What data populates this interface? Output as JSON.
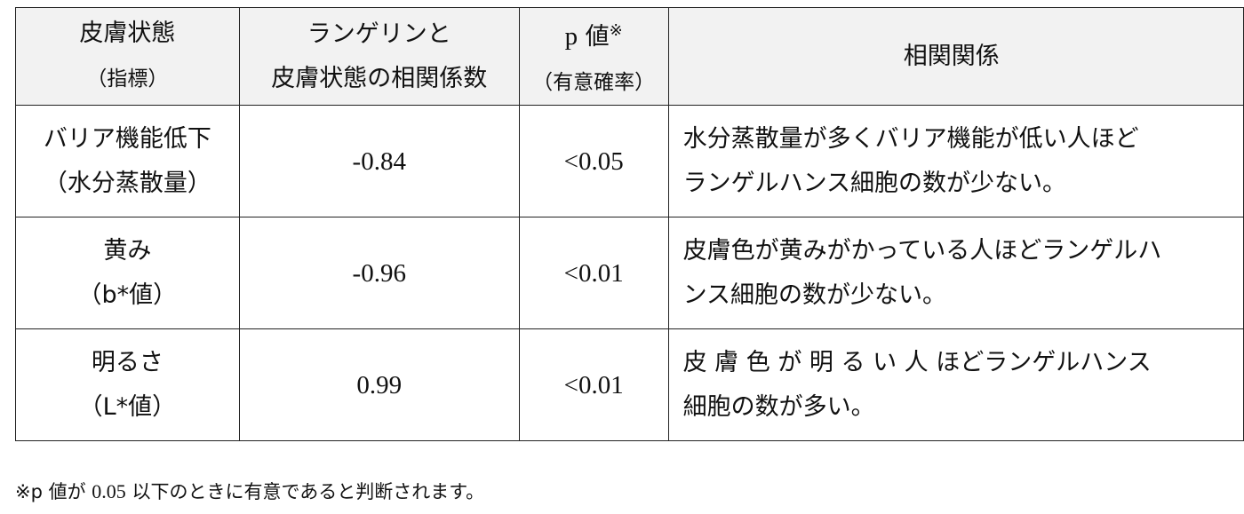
{
  "table": {
    "headers": [
      {
        "line1": "皮膚状態",
        "line2": "（指標）"
      },
      {
        "line1": "ランゲリンと",
        "line2": "皮膚状態の相関係数"
      },
      {
        "line1_p": "p",
        "line1": "値",
        "mark": "※",
        "line2": "（有意確率）"
      },
      {
        "line1": "相関関係"
      }
    ],
    "rows": [
      {
        "indicator": "バリア機能低下",
        "indicator_sub": "（水分蒸散量）",
        "coef": "-0.84",
        "p": "<0.05",
        "relation_l1": "水分蒸散量が多くバリア機能が低い人ほど",
        "relation_l2": "ランゲルハンス細胞の数が少ない。"
      },
      {
        "indicator": "黄み",
        "indicator_sub": "（b*値）",
        "coef": "-0.96",
        "p": "<0.01",
        "relation_l1": "皮膚色が黄みがかっている人ほどランゲルハ",
        "relation_l2": "ンス細胞の数が少ない。"
      },
      {
        "indicator": "明るさ",
        "indicator_sub": "（L*値）",
        "coef": "0.99",
        "p": "<0.01",
        "relation_l1": "皮 膚 色 が 明 る い 人 ほどランゲルハンス",
        "relation_l2": "細胞の数が多い。"
      }
    ]
  },
  "footnote": {
    "a": "※p 値が ",
    "b": "0.05",
    "c": " 以下のときに有意であると判断されます。"
  }
}
